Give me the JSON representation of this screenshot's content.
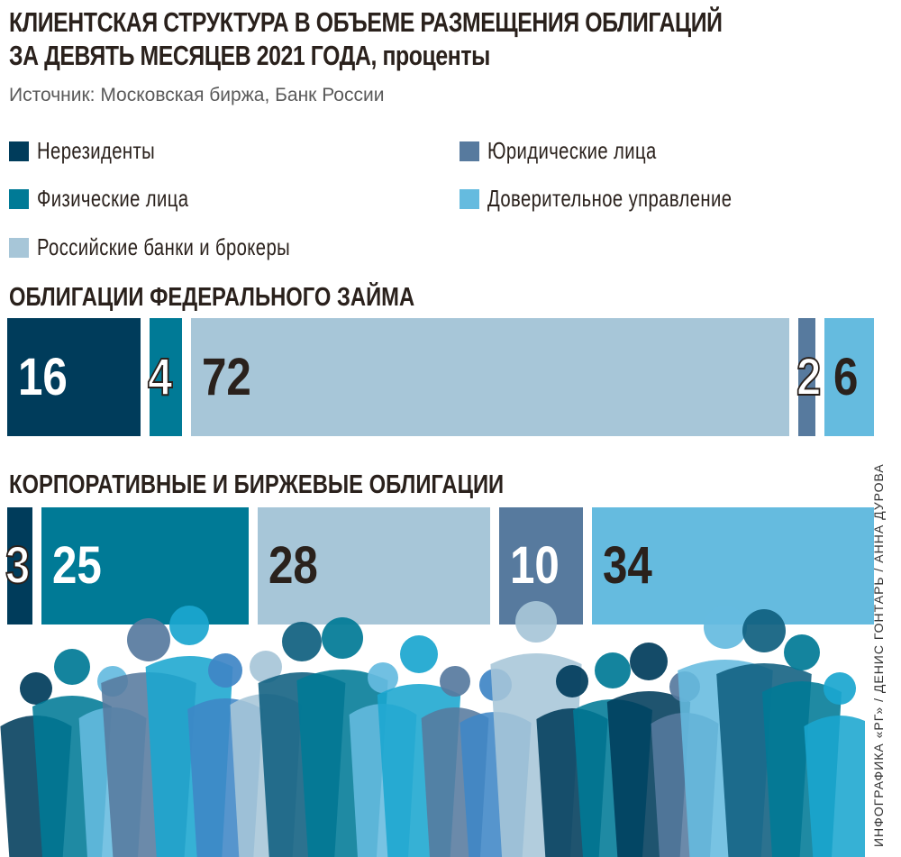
{
  "title": {
    "line1": "КЛИЕНТСКАЯ СТРУКТУРА В ОБЪЕМЕ РАЗМЕЩЕНИЯ ОБЛИГАЦИЙ",
    "line2": "ЗА ДЕВЯТЬ МЕСЯЦЕВ 2021 ГОДА,",
    "unit": "проценты"
  },
  "source": "Источник: Московская биржа, Банк России",
  "credit": "ИНФОГРАФИКА «РГ» / ДЕНИС ГОНТАРЬ / АННА ДУРОВА",
  "legend": [
    {
      "label": "Нерезиденты",
      "color": "#003c5b"
    },
    {
      "label": "Физические лица",
      "color": "#007a96"
    },
    {
      "label": "Российские банки и брокеры",
      "color": "#a7c6d8"
    },
    {
      "label": "Юридические лица",
      "color": "#577a9e"
    },
    {
      "label": "Доверительное управление",
      "color": "#65bbdf"
    }
  ],
  "chart_data": [
    {
      "type": "bar",
      "title": "ОБЛИГАЦИИ ФЕДЕРАЛЬНОГО ЗАЙМА",
      "categories": [
        "Нерезиденты",
        "Физические лица",
        "Российские банки и брокеры",
        "Юридические лица",
        "Доверительное управление"
      ],
      "values": [
        16,
        4,
        72,
        2,
        6
      ],
      "labels": [
        "16",
        "4",
        "72",
        "2",
        "6"
      ],
      "colors": [
        "#003c5b",
        "#007a96",
        "#a7c6d8",
        "#577a9e",
        "#65bbdf"
      ],
      "label_colors": [
        "#ffffff",
        "#ffffff",
        "#2a211c",
        "#ffffff",
        "#2a211c"
      ]
    },
    {
      "type": "bar",
      "title": "КОРПОРАТИВНЫЕ И БИРЖЕВЫЕ ОБЛИГАЦИИ",
      "categories": [
        "Нерезиденты",
        "Физические лица",
        "Российские банки и брокеры",
        "Юридические лица",
        "Доверительное управление"
      ],
      "values": [
        3,
        25,
        28,
        10,
        34
      ],
      "labels": [
        "3",
        "25",
        "28",
        "10",
        "34"
      ],
      "colors": [
        "#003c5b",
        "#007a96",
        "#a7c6d8",
        "#577a9e",
        "#65bbdf"
      ],
      "label_colors": [
        "#ffffff",
        "#ffffff",
        "#2a211c",
        "#ffffff",
        "#2a211c"
      ]
    }
  ]
}
